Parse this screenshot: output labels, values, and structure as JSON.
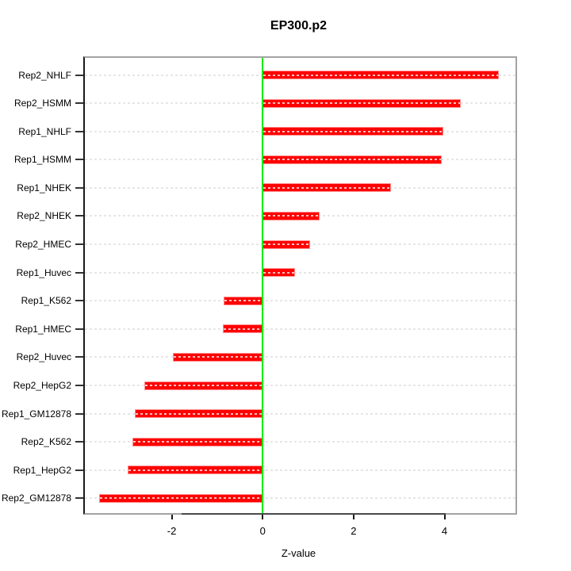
{
  "title": "EP300.p2",
  "chart_data": {
    "type": "bar",
    "orientation": "horizontal",
    "title": "EP300.p2",
    "xlabel": "Z-value",
    "ylabel": "",
    "categories": [
      "Rep2_NHLF",
      "Rep2_HSMM",
      "Rep1_NHLF",
      "Rep1_HSMM",
      "Rep1_NHEK",
      "Rep2_NHEK",
      "Rep2_HMEC",
      "Rep1_Huvec",
      "Rep1_K562",
      "Rep1_HMEC",
      "Rep2_Huvec",
      "Rep2_HepG2",
      "Rep1_GM12878",
      "Rep2_K562",
      "Rep1_HepG2",
      "Rep2_GM12878"
    ],
    "values": [
      5.2,
      4.35,
      3.97,
      3.94,
      2.82,
      1.25,
      1.05,
      0.72,
      -0.85,
      -0.87,
      -1.97,
      -2.6,
      -2.81,
      -2.86,
      -2.97,
      -3.59
    ],
    "xlim": [
      -3.91,
      5.56
    ],
    "xticks": [
      -2,
      0,
      2,
      4
    ],
    "xtick_labels": [
      "-2",
      "0",
      "2",
      "4"
    ],
    "axis_line_extent": [
      -1.78,
      4.03
    ],
    "zero_line_value": 0,
    "grid": true,
    "legend": null,
    "colors": {
      "bar_fill": "#ff0000",
      "bar_edge": "#ff9090",
      "bar_center_dash": "#ffc0c0",
      "zero_line": "#00ee00",
      "gridline": "#e6e6e6",
      "box_border": "#a3a3a3",
      "left_axis": "#1a1a1a",
      "text": "#000000",
      "background": "#ffffff"
    }
  }
}
